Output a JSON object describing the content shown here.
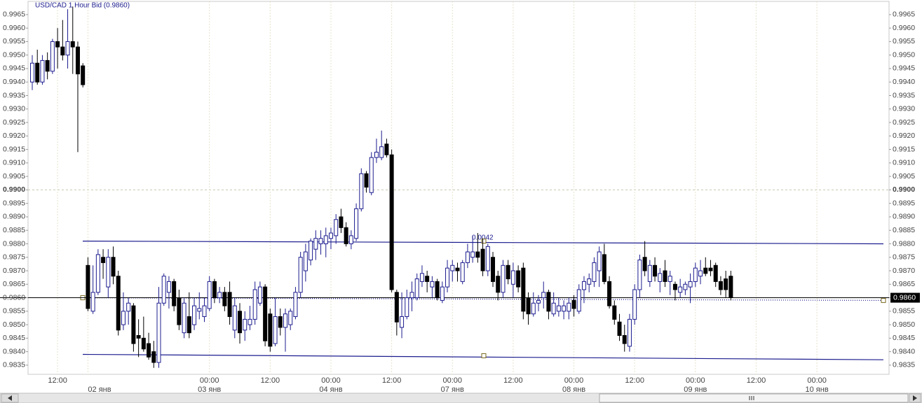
{
  "chart_data": {
    "type": "candlestick",
    "title": "USD/CAD 1 Hour Bid (0.9860)",
    "categories": [
      null,
      null,
      null,
      null,
      null,
      "12:00",
      null,
      null,
      null,
      null,
      null,
      null,
      null,
      null,
      null,
      null,
      null,
      null,
      null,
      null,
      null,
      null,
      null,
      null,
      null,
      null,
      null,
      null,
      null,
      null,
      null,
      null,
      null,
      null,
      null,
      "00:00",
      null,
      null,
      null,
      null,
      null,
      null,
      null,
      null,
      null,
      null,
      null,
      "12:00",
      null,
      null,
      null,
      null,
      null,
      null,
      null,
      null,
      null,
      null,
      null,
      "00:00",
      null,
      null,
      null,
      null,
      null,
      null,
      null,
      null,
      null,
      null,
      null,
      "12:00",
      null,
      null,
      null,
      null,
      null,
      null,
      null,
      null,
      null,
      null,
      null,
      "00:00",
      null,
      null,
      null,
      null,
      null,
      null,
      null,
      null,
      null,
      null,
      null,
      "12:00",
      null,
      null,
      null,
      null,
      null,
      null,
      null,
      null,
      null,
      null,
      null,
      "00:00",
      null,
      null,
      null,
      null,
      null,
      null,
      null,
      null,
      null,
      null,
      null,
      "12:00",
      null,
      null,
      null,
      null,
      null,
      null,
      null,
      null,
      null,
      null,
      null,
      "00:00",
      null,
      null,
      null,
      null,
      null,
      null,
      null,
      null,
      null,
      null,
      null,
      "12:00",
      null,
      null,
      null,
      null,
      null,
      null,
      null,
      null,
      null,
      null,
      null,
      "00:00"
    ],
    "category_dates": [
      null,
      null,
      null,
      null,
      null,
      null,
      null,
      null,
      null,
      null,
      null,
      "02 янв",
      null,
      null,
      null,
      null,
      null,
      null,
      null,
      null,
      null,
      null,
      null,
      null,
      null,
      null,
      null,
      null,
      null,
      null,
      null,
      null,
      null,
      null,
      null,
      "03 янв",
      null,
      null,
      null,
      null,
      null,
      null,
      null,
      null,
      null,
      null,
      null,
      null,
      null,
      null,
      null,
      null,
      null,
      null,
      null,
      null,
      null,
      null,
      null,
      "04 янв",
      null,
      null,
      null,
      null,
      null,
      null,
      null,
      null,
      null,
      null,
      null,
      null,
      null,
      null,
      null,
      null,
      null,
      null,
      null,
      null,
      null,
      null,
      null,
      "07 янв",
      null,
      null,
      null,
      null,
      null,
      null,
      null,
      null,
      null,
      null,
      null,
      null,
      null,
      null,
      null,
      null,
      null,
      null,
      null,
      null,
      null,
      null,
      null,
      "08 янв",
      null,
      null,
      null,
      null,
      null,
      null,
      null,
      null,
      null,
      null,
      null,
      null,
      null,
      null,
      null,
      null,
      null,
      null,
      null,
      null,
      null,
      null,
      null,
      "09 янв",
      null,
      null,
      null,
      null,
      null,
      null,
      null,
      null,
      null,
      null,
      null,
      null,
      null,
      null,
      null,
      null,
      null,
      null,
      null,
      null,
      null,
      null,
      null,
      "10 янв"
    ],
    "open": [
      0.994,
      0.9947,
      0.994,
      0.9948,
      0.9944,
      0.9955,
      0.9953,
      0.995,
      0.9955,
      0.9953,
      0.9946,
      0.9872,
      0.9855,
      0.9862,
      0.9875,
      0.9864,
      0.9875,
      0.9868,
      0.985,
      0.9855,
      0.9857,
      0.9846,
      0.9845,
      0.9843,
      0.984,
      0.9836,
      0.9858,
      0.9862,
      0.9866,
      0.986,
      0.9847,
      0.9853,
      0.985,
      0.9855,
      0.9853,
      0.9856,
      0.9866,
      0.986,
      0.9862,
      0.9862,
      0.9848,
      0.9855,
      0.9848,
      0.985,
      0.9852,
      0.9858,
      0.9864,
      0.9854,
      0.9843,
      0.9853,
      0.9849,
      0.985,
      0.9853,
      0.9862,
      0.987,
      0.9874,
      0.9878,
      0.988,
      0.988,
      0.9882,
      0.9883,
      0.989,
      0.9886,
      0.988,
      0.9882,
      0.9893,
      0.9906,
      0.9899,
      0.9912,
      0.9912,
      0.9917,
      0.9913,
      0.9862,
      0.9849,
      0.9853,
      0.986,
      0.986,
      0.9866,
      0.9868,
      0.9864,
      0.9866,
      0.9859,
      0.9864,
      0.987,
      0.9871,
      0.9866,
      0.9873,
      0.9875,
      0.9877,
      0.9878,
      0.987,
      0.9875,
      0.9868,
      0.9862,
      0.9872,
      0.9865,
      0.987,
      0.9871,
      0.986,
      0.9854,
      0.9858,
      0.986,
      0.9862,
      0.9854,
      0.9855,
      0.9855,
      0.9855,
      0.9859,
      0.9855,
      0.9863,
      0.9865,
      0.9866,
      0.987,
      0.9876,
      0.9866,
      0.9857,
      0.9851,
      0.9846,
      0.9842,
      0.9852,
      0.9863,
      0.9875,
      0.9866,
      0.9872,
      0.9866,
      0.987,
      0.9866,
      0.9865,
      0.9862,
      0.9863,
      0.9864,
      0.9866,
      0.9868,
      0.9871,
      0.9871,
      0.9872,
      0.9866,
      0.9867,
      0.9868,
      null,
      null,
      null,
      null,
      null,
      null,
      null,
      null,
      null,
      null,
      null,
      null,
      null,
      null,
      null,
      null,
      null
    ],
    "high": [
      0.995,
      0.9952,
      0.995,
      0.9951,
      0.9956,
      0.996,
      0.9963,
      0.9967,
      0.9968,
      0.9955,
      0.9947,
      0.9875,
      0.9872,
      0.9878,
      0.9878,
      0.9878,
      0.9879,
      0.987,
      0.9862,
      0.986,
      0.9858,
      0.9852,
      0.9853,
      0.9847,
      0.9844,
      0.9864,
      0.9869,
      0.9868,
      0.9867,
      0.9863,
      0.986,
      0.9862,
      0.986,
      0.9862,
      0.986,
      0.9868,
      0.9867,
      0.9864,
      0.9864,
      0.9866,
      0.986,
      0.9858,
      0.9855,
      0.9857,
      0.9866,
      0.9866,
      0.9865,
      0.9856,
      0.986,
      0.9856,
      0.9856,
      0.9856,
      0.9864,
      0.9877,
      0.988,
      0.9882,
      0.9885,
      0.9885,
      0.9886,
      0.9886,
      0.9891,
      0.9893,
      0.9888,
      0.9885,
      0.9895,
      0.9908,
      0.9907,
      0.9914,
      0.9919,
      0.9922,
      0.9919,
      0.9915,
      0.9863,
      0.9862,
      0.9863,
      0.9866,
      0.9869,
      0.9872,
      0.987,
      0.9868,
      0.9867,
      0.9866,
      0.9874,
      0.9874,
      0.9873,
      0.9874,
      0.988,
      0.9883,
      0.9884,
      0.9882,
      0.988,
      0.9877,
      0.987,
      0.9874,
      0.9874,
      0.9873,
      0.9872,
      0.9873,
      0.9862,
      0.9862,
      0.9861,
      0.9866,
      0.9863,
      0.9862,
      0.986,
      0.9859,
      0.986,
      0.9861,
      0.9865,
      0.9868,
      0.9869,
      0.9875,
      0.9879,
      0.988,
      0.9868,
      0.9859,
      0.9854,
      0.985,
      0.9854,
      0.9865,
      0.9876,
      0.9881,
      0.9874,
      0.9875,
      0.9871,
      0.9874,
      0.987,
      0.9866,
      0.9867,
      0.9866,
      0.9869,
      0.9873,
      0.9874,
      0.9875,
      0.9874,
      0.9873,
      0.9868,
      0.987,
      0.987,
      null,
      null,
      null,
      null,
      null,
      null,
      null,
      null,
      null,
      null,
      null,
      null,
      null,
      null,
      null,
      null,
      null
    ],
    "low": [
      0.9937,
      0.9939,
      0.9939,
      0.9941,
      0.9943,
      0.9945,
      0.9948,
      0.9945,
      0.9943,
      0.9914,
      0.9938,
      0.9855,
      0.9854,
      0.9861,
      0.9867,
      0.986,
      0.9865,
      0.9846,
      0.9848,
      0.985,
      0.984,
      0.9838,
      0.984,
      0.9837,
      0.9834,
      0.9834,
      0.9857,
      0.9856,
      0.9855,
      0.9848,
      0.9845,
      0.9845,
      0.9848,
      0.9852,
      0.9851,
      0.9855,
      0.9858,
      0.9858,
      0.9855,
      0.985,
      0.9845,
      0.9843,
      0.9844,
      0.9848,
      0.985,
      0.9857,
      0.9842,
      0.984,
      0.9842,
      0.9846,
      0.984,
      0.9848,
      0.9852,
      0.986,
      0.9866,
      0.9872,
      0.9874,
      0.9876,
      0.9875,
      0.9878,
      0.988,
      0.9884,
      0.9879,
      0.9878,
      0.9881,
      0.9892,
      0.9899,
      0.9898,
      0.991,
      0.9911,
      0.9912,
      0.9862,
      0.9846,
      0.9845,
      0.9852,
      0.9855,
      0.9859,
      0.9864,
      0.9862,
      0.986,
      0.9859,
      0.9858,
      0.9862,
      0.9866,
      0.9866,
      0.9865,
      0.9871,
      0.9873,
      0.9873,
      0.9868,
      0.9868,
      0.9864,
      0.9859,
      0.986,
      0.9865,
      0.986,
      0.9862,
      0.9852,
      0.985,
      0.9853,
      0.9855,
      0.9856,
      0.9852,
      0.9853,
      0.9853,
      0.9852,
      0.9852,
      0.9853,
      0.9854,
      0.9858,
      0.9862,
      0.9864,
      0.9864,
      0.9865,
      0.9856,
      0.985,
      0.9844,
      0.984,
      0.984,
      0.985,
      0.986,
      0.9868,
      0.9864,
      0.9866,
      0.9862,
      0.9864,
      0.9861,
      0.9859,
      0.986,
      0.9861,
      0.9858,
      0.9864,
      0.9865,
      0.9868,
      0.9868,
      0.9864,
      0.9861,
      0.986,
      0.9859,
      null,
      null,
      null,
      null,
      null,
      null,
      null,
      null,
      null,
      null,
      null,
      null,
      null,
      null,
      null,
      null,
      null
    ],
    "close": [
      0.9947,
      0.994,
      0.9948,
      0.9944,
      0.9955,
      0.9953,
      0.995,
      0.9955,
      0.9953,
      0.9943,
      0.9939,
      0.9856,
      0.9862,
      0.9876,
      0.9873,
      0.9875,
      0.9868,
      0.9848,
      0.9855,
      0.9858,
      0.9843,
      0.9845,
      0.9841,
      0.9838,
      0.9836,
      0.9858,
      0.9868,
      0.9866,
      0.9857,
      0.985,
      0.9858,
      0.9847,
      0.9857,
      0.9856,
      0.9857,
      0.9866,
      0.986,
      0.9862,
      0.9857,
      0.9853,
      0.9857,
      0.9847,
      0.9852,
      0.9852,
      0.9863,
      0.9864,
      0.9844,
      0.9842,
      0.9853,
      0.9849,
      0.9854,
      0.9855,
      0.9862,
      0.9875,
      0.9877,
      0.9881,
      0.9882,
      0.9882,
      0.9883,
      0.9884,
      0.9889,
      0.9886,
      0.988,
      0.9883,
      0.9893,
      0.9906,
      0.9901,
      0.9912,
      0.9914,
      0.9916,
      0.9913,
      0.9863,
      0.9851,
      0.9853,
      0.986,
      0.9862,
      0.9867,
      0.9869,
      0.9866,
      0.9866,
      0.986,
      0.9864,
      0.9871,
      0.9872,
      0.987,
      0.9873,
      0.9877,
      0.9877,
      0.9875,
      0.987,
      0.9879,
      0.9866,
      0.9862,
      0.9872,
      0.9867,
      0.987,
      0.9864,
      0.9855,
      0.9854,
      0.9858,
      0.9859,
      0.9862,
      0.9855,
      0.9858,
      0.9857,
      0.9857,
      0.9858,
      0.9856,
      0.9863,
      0.9866,
      0.9867,
      0.9873,
      0.9877,
      0.9866,
      0.9857,
      0.9852,
      0.9846,
      0.9843,
      0.9852,
      0.9863,
      0.9874,
      0.987,
      0.9872,
      0.9868,
      0.9869,
      0.9866,
      0.9868,
      0.9863,
      0.9864,
      0.9865,
      0.9866,
      0.9871,
      0.987,
      0.9869,
      0.987,
      0.9866,
      0.9863,
      0.9863,
      0.986,
      null,
      null,
      null,
      null,
      null,
      null,
      null,
      null,
      null,
      null,
      null,
      null,
      null,
      null,
      null,
      null,
      null
    ],
    "up_color": "#1c1c8f",
    "down_color": "#000000",
    "ylim": [
      0.98316,
      0.99699
    ],
    "yticks": [
      0.9835,
      {
        "value": 0.984,
        "label": "0.9840"
      },
      0.9845,
      {
        "value": 0.985,
        "label": "0.9850"
      },
      0.9855,
      {
        "value": 0.986,
        "label": "0.9860"
      },
      0.9865,
      {
        "value": 0.987,
        "label": "0.9870"
      },
      0.9875,
      {
        "value": 0.988,
        "label": "0.9880"
      },
      0.9885,
      {
        "value": 0.989,
        "label": "0.9890"
      },
      0.9895,
      {
        "value": 0.99,
        "label": "0.9900"
      },
      0.9905,
      {
        "value": 0.991,
        "label": "0.9910"
      },
      0.9915,
      {
        "value": 0.992,
        "label": "0.9920"
      },
      0.9925,
      {
        "value": 0.993,
        "label": "0.9930"
      },
      0.9935,
      {
        "value": 0.994,
        "label": "0.9940"
      },
      0.9945,
      {
        "value": 0.995,
        "label": "0.9950"
      },
      0.9955,
      {
        "value": 0.996,
        "label": "0.9960"
      },
      0.9965
    ],
    "highlight_level": 0.99,
    "current_price": {
      "value": 0.986,
      "label": "0.9860"
    },
    "channel": {
      "upper": [
        0.9881,
        0.988
      ],
      "middle": [
        0.986,
        0.9859
      ],
      "lower": [
        0.9839,
        0.9837
      ],
      "color": "#1c1c8f",
      "width_label": "0.0042"
    }
  }
}
